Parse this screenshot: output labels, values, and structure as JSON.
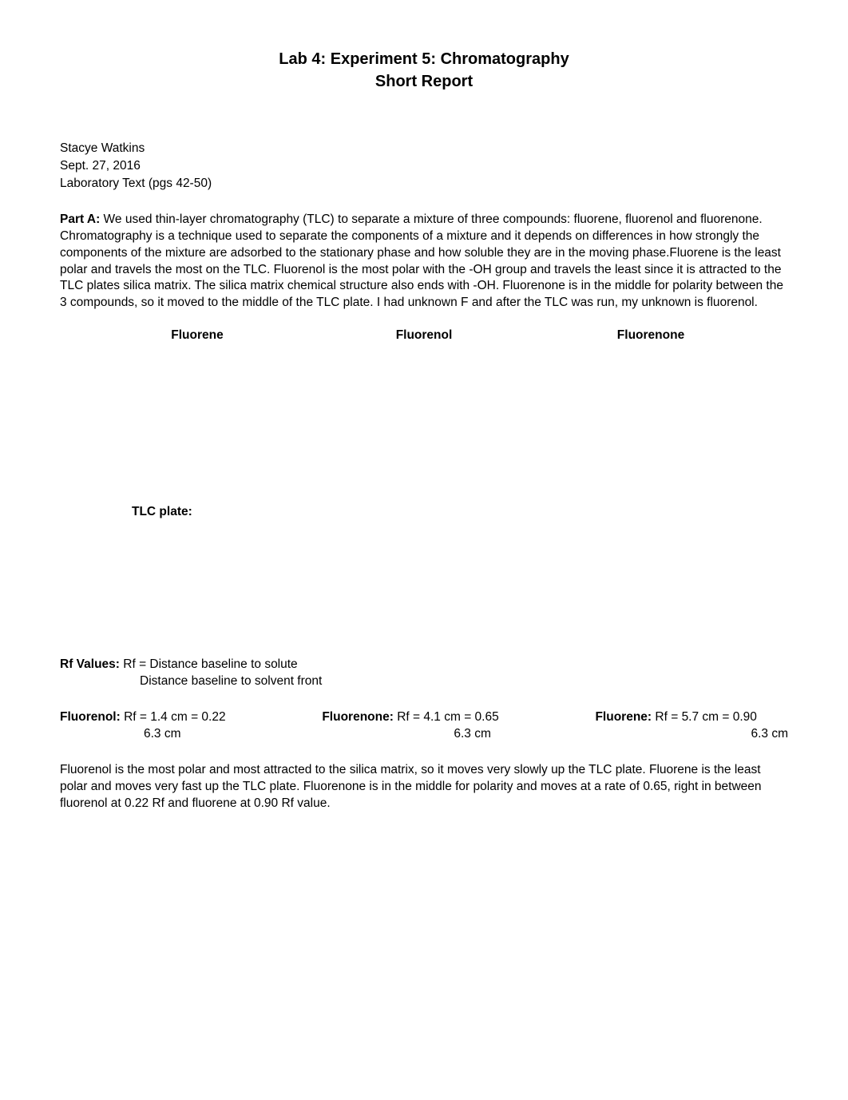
{
  "title": {
    "line1": "Lab 4: Experiment 5: Chromatography",
    "line2": "Short Report"
  },
  "author": {
    "name": "Stacye Watkins",
    "date": "Sept. 27, 2016",
    "reference": "Laboratory Text (pgs 42-50)"
  },
  "partA": {
    "label": "Part A:",
    "text": " We used thin-layer chromatography (TLC) to separate a mixture of three compounds: fluorene, fluorenol and fluorenone. Chromatography is a technique used to separate the components of a mixture and it depends on differences in how strongly the components of the mixture are adsorbed to the stationary phase and how soluble they are in the moving phase.Fluorene is the least polar and travels the most on the TLC. Fluorenol is the most polar with the -OH group and travels the least since it is attracted to the TLC plates silica matrix. The silica matrix chemical structure also ends with -OH. Fluorenone is in the middle for polarity between the 3 compounds, so it moved to the middle of the TLC plate. I had unknown F and after the TLC was run, my unknown is fluorenol."
  },
  "compounds": {
    "c1": "Fluorene",
    "c2": "Fluorenol",
    "c3": "Fluorenone"
  },
  "tlcPlate": {
    "label": "TLC plate:"
  },
  "rfValues": {
    "label": "Rf Values:",
    "formula_numerator": "  Rf = Distance baseline to solute",
    "formula_denominator": "Distance baseline to solvent front"
  },
  "rfData": [
    {
      "name": "Fluorenol:",
      "value": " Rf = 1.4 cm = 0.22",
      "denom": "6.3 cm"
    },
    {
      "name": "Fluorenone:",
      "value": " Rf = 4.1 cm = 0.65",
      "denom": "6.3 cm"
    },
    {
      "name": "Fluorene:",
      "value": " Rf = 5.7 cm = 0.90",
      "denom": "6.3 cm"
    }
  ],
  "conclusion": "Fluorenol is the most polar and most attracted to the silica matrix, so it moves very slowly up the TLC plate. Fluorene is the least polar and moves very fast up the TLC plate. Fluorenone is in the middle for polarity and moves at a rate of 0.65, right in between fluorenol at 0.22 Rf and fluorene at 0.90 Rf value.",
  "style": {
    "background_color": "#ffffff",
    "text_color": "#000000",
    "title_fontsize": 20,
    "body_fontsize": 15.5,
    "font_family": "Arial"
  }
}
